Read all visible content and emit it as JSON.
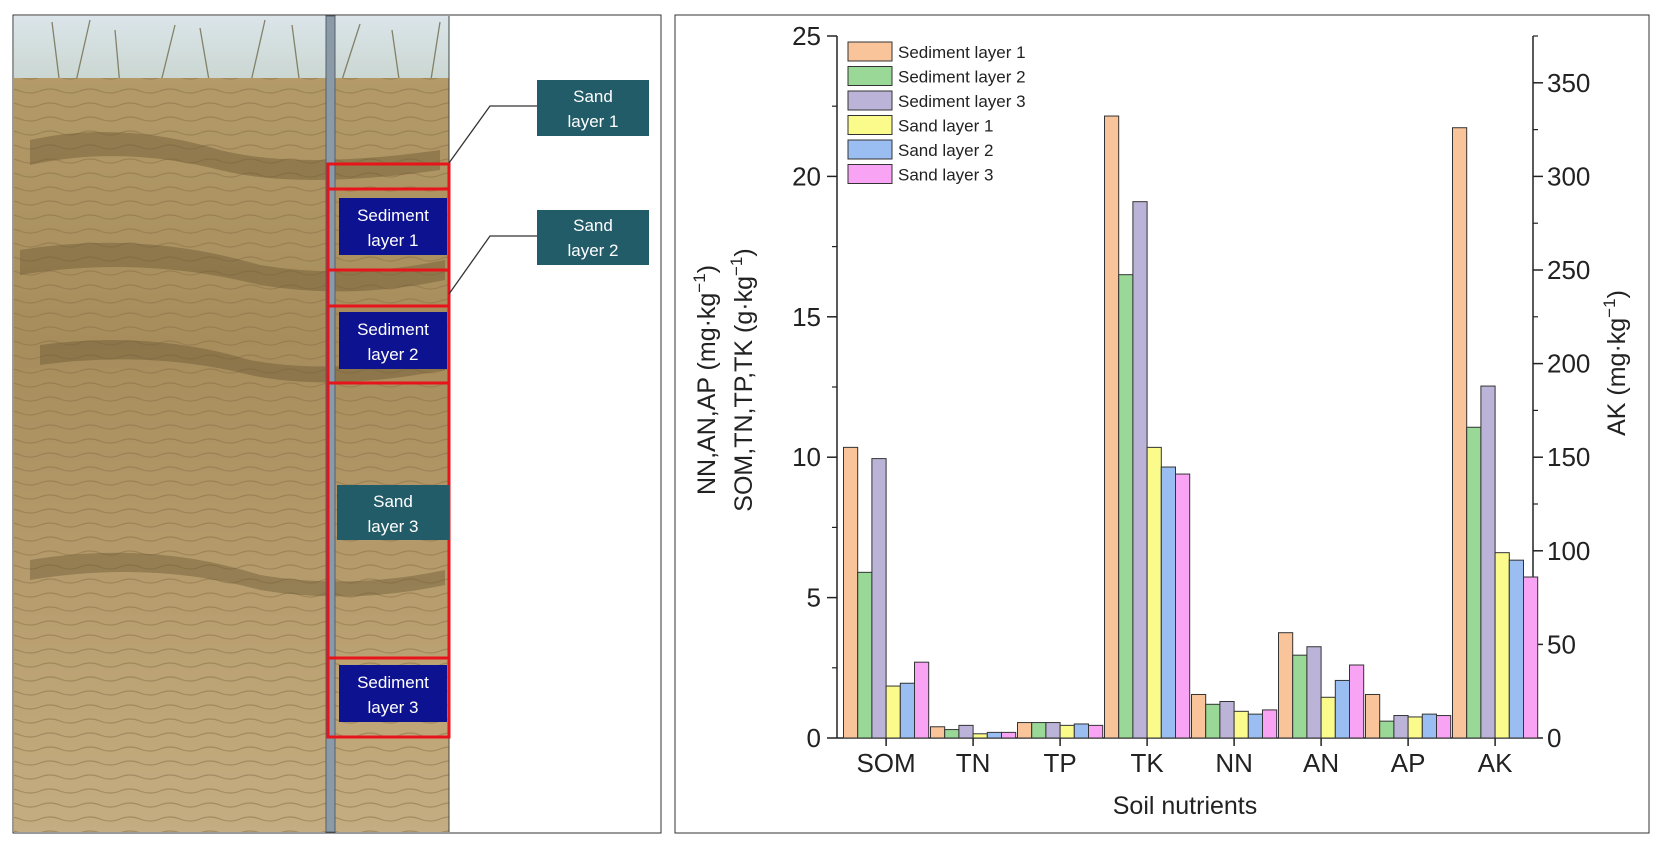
{
  "figure": {
    "panel_a": {
      "labels": [
        {
          "id": "sand1",
          "line1": "Sand",
          "line2": "layer 1",
          "kind": "sand"
        },
        {
          "id": "sed1",
          "line1": "Sediment",
          "line2": "layer 1",
          "kind": "sediment"
        },
        {
          "id": "sand2",
          "line1": "Sand",
          "line2": "layer 2",
          "kind": "sand"
        },
        {
          "id": "sed2",
          "line1": "Sediment",
          "line2": "layer 2",
          "kind": "sediment"
        },
        {
          "id": "sand3",
          "line1": "Sand",
          "line2": "layer 3",
          "kind": "sand"
        },
        {
          "id": "sed3",
          "line1": "Sediment",
          "line2": "layer 3",
          "kind": "sediment"
        }
      ],
      "colors": {
        "sand_box": "#215c68",
        "sediment_box": "#0d1291",
        "outline": "#e8141c"
      }
    }
  },
  "chart_data": {
    "type": "bar",
    "title": "",
    "xlabel": "Soil nutrients",
    "ylabel_left_line1": "NN,AN,AP (mg·kg",
    "ylabel_left_line2": "SOM,TN,TP,TK (g·kg",
    "ylabel_left_sup": "−1",
    "ylabel_right": "AK (mg·kg",
    "ylabel_right_sup": "−1",
    "ylim_left": [
      0,
      25
    ],
    "ylim_right": [
      0,
      375
    ],
    "left_ticks": [
      0,
      5,
      10,
      15,
      20,
      25
    ],
    "right_ticks": [
      0,
      50,
      100,
      150,
      200,
      250,
      300,
      350
    ],
    "categories": [
      "SOM",
      "TN",
      "TP",
      "TK",
      "NN",
      "AN",
      "AP",
      "AK"
    ],
    "right_axis_categories": [
      "AK"
    ],
    "legend_position": "top-left",
    "grid": false,
    "series": [
      {
        "name": "Sediment layer 1",
        "color": "#f9c49a",
        "values": [
          10.35,
          0.4,
          0.55,
          22.15,
          1.55,
          3.75,
          1.55,
          326
        ]
      },
      {
        "name": "Sediment layer 2",
        "color": "#99d896",
        "values": [
          5.9,
          0.3,
          0.55,
          16.5,
          1.2,
          2.95,
          0.6,
          166
        ]
      },
      {
        "name": "Sediment layer 3",
        "color": "#bcb4d8",
        "values": [
          9.95,
          0.45,
          0.55,
          19.1,
          1.3,
          3.25,
          0.8,
          188
        ]
      },
      {
        "name": "Sand layer 1",
        "color": "#fbfb8c",
        "values": [
          1.85,
          0.15,
          0.45,
          10.35,
          0.95,
          1.45,
          0.75,
          99
        ]
      },
      {
        "name": "Sand layer 2",
        "color": "#9abdf2",
        "values": [
          1.95,
          0.2,
          0.5,
          9.65,
          0.85,
          2.05,
          0.85,
          95
        ]
      },
      {
        "name": "Sand layer 3",
        "color": "#f8a3f4",
        "values": [
          2.7,
          0.2,
          0.45,
          9.4,
          1.0,
          2.6,
          0.8,
          86
        ]
      }
    ]
  }
}
